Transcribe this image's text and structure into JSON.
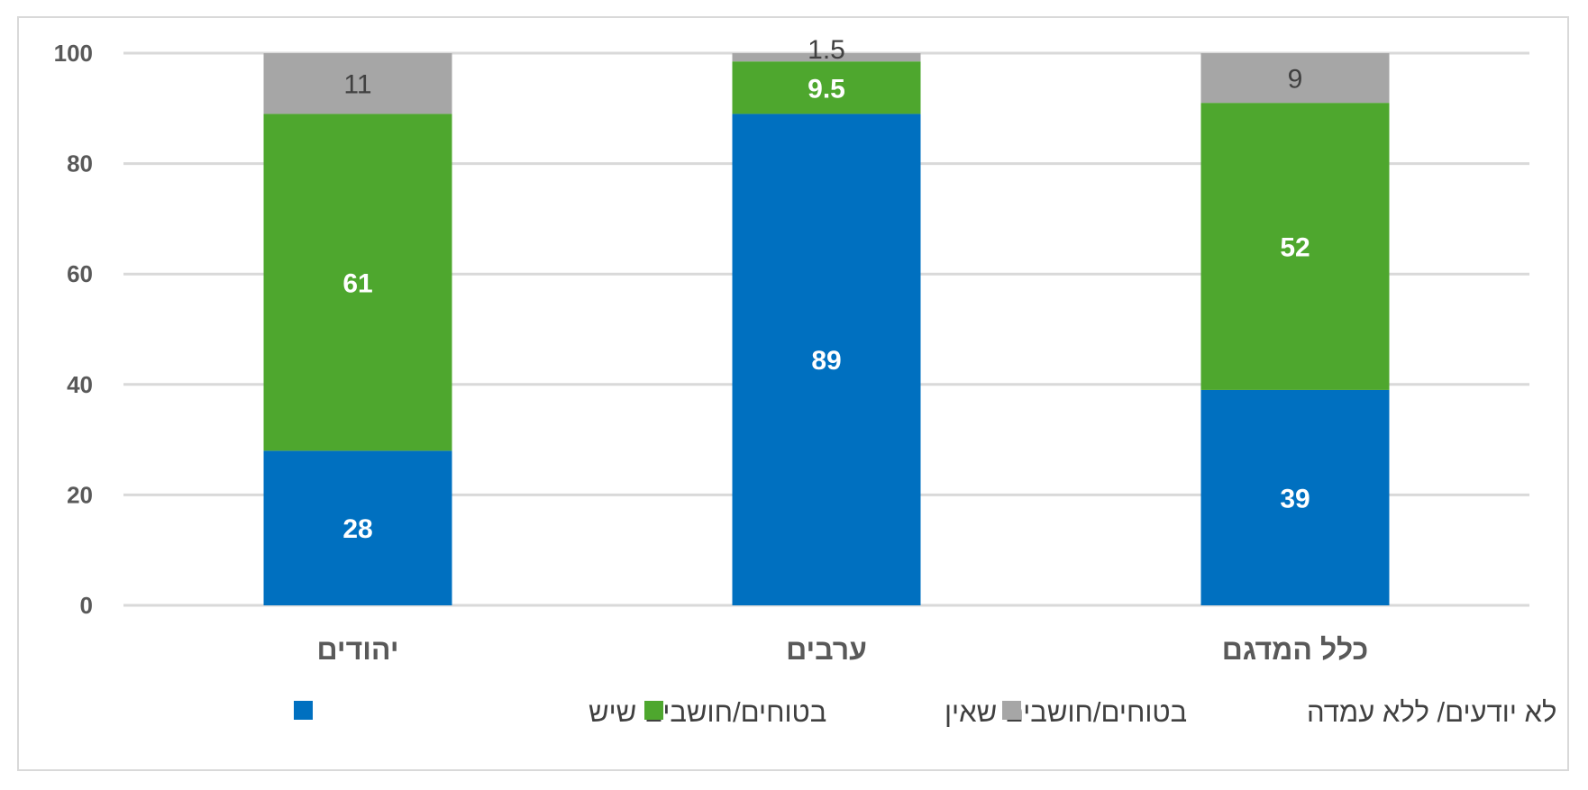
{
  "chart_data": {
    "type": "bar",
    "stacked": true,
    "categories": [
      "יהודים",
      "ערבים",
      "כלל המדגם"
    ],
    "series": [
      {
        "name": "בטוחים/חושבים שיש",
        "values": [
          28,
          89,
          39
        ],
        "color": "#0070C0",
        "label_color": "#ffffff",
        "label_bold": true
      },
      {
        "name": "בטוחים/חושבים שאין",
        "values": [
          61,
          9.5,
          52
        ],
        "color": "#4EA72E",
        "label_color": "#ffffff",
        "label_bold": true
      },
      {
        "name": "לא יודעים/ ללא עמדה",
        "values": [
          11,
          1.5,
          9
        ],
        "color": "#A6A6A6",
        "label_color": "#404040",
        "label_bold": false
      }
    ],
    "data_labels": [
      [
        "28",
        "89",
        "39"
      ],
      [
        "61",
        "9.5",
        "52"
      ],
      [
        "11",
        "1.5",
        "9"
      ]
    ],
    "y_ticks": [
      "0",
      "20",
      "40",
      "60",
      "80",
      "100"
    ],
    "ylim": [
      0,
      100
    ],
    "grid": true,
    "legend": {
      "position": "bottom",
      "order": [
        0,
        1,
        2
      ]
    },
    "title": "",
    "xlabel": "",
    "ylabel": ""
  }
}
